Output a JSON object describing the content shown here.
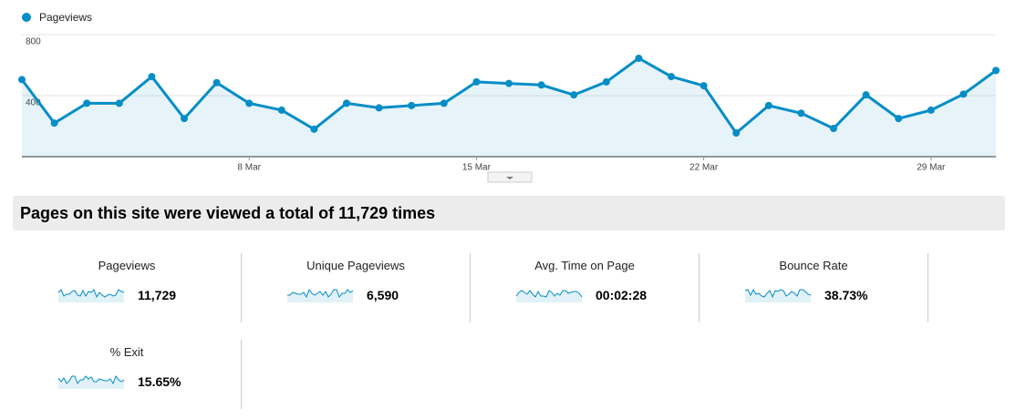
{
  "chart_data": {
    "type": "line",
    "legend": "Pageviews",
    "categories": [
      null,
      null,
      null,
      null,
      null,
      null,
      null,
      "8 Mar",
      null,
      null,
      null,
      null,
      null,
      null,
      "15 Mar",
      null,
      null,
      null,
      null,
      null,
      null,
      "22 Mar",
      null,
      null,
      null,
      null,
      null,
      null,
      "29 Mar",
      null,
      null
    ],
    "series": [
      {
        "name": "Pageviews",
        "color": "#058dc7",
        "values": [
          505,
          220,
          350,
          350,
          525,
          250,
          485,
          350,
          305,
          180,
          350,
          320,
          335,
          350,
          490,
          480,
          470,
          405,
          490,
          645,
          525,
          465,
          155,
          335,
          285,
          185,
          405,
          250,
          305,
          410,
          565
        ]
      }
    ],
    "ylim": [
      0,
      800
    ],
    "yticks": [
      400,
      800
    ],
    "grid": true
  },
  "summary": {
    "headline": "Pages on this site were viewed a total of 11,729 times",
    "metrics": [
      {
        "label": "Pageviews",
        "value": "11,729"
      },
      {
        "label": "Unique Pageviews",
        "value": "6,590"
      },
      {
        "label": "Avg. Time on Page",
        "value": "00:02:28"
      },
      {
        "label": "Bounce Rate",
        "value": "38.73%"
      },
      {
        "label": "% Exit",
        "value": "15.65%"
      }
    ]
  }
}
